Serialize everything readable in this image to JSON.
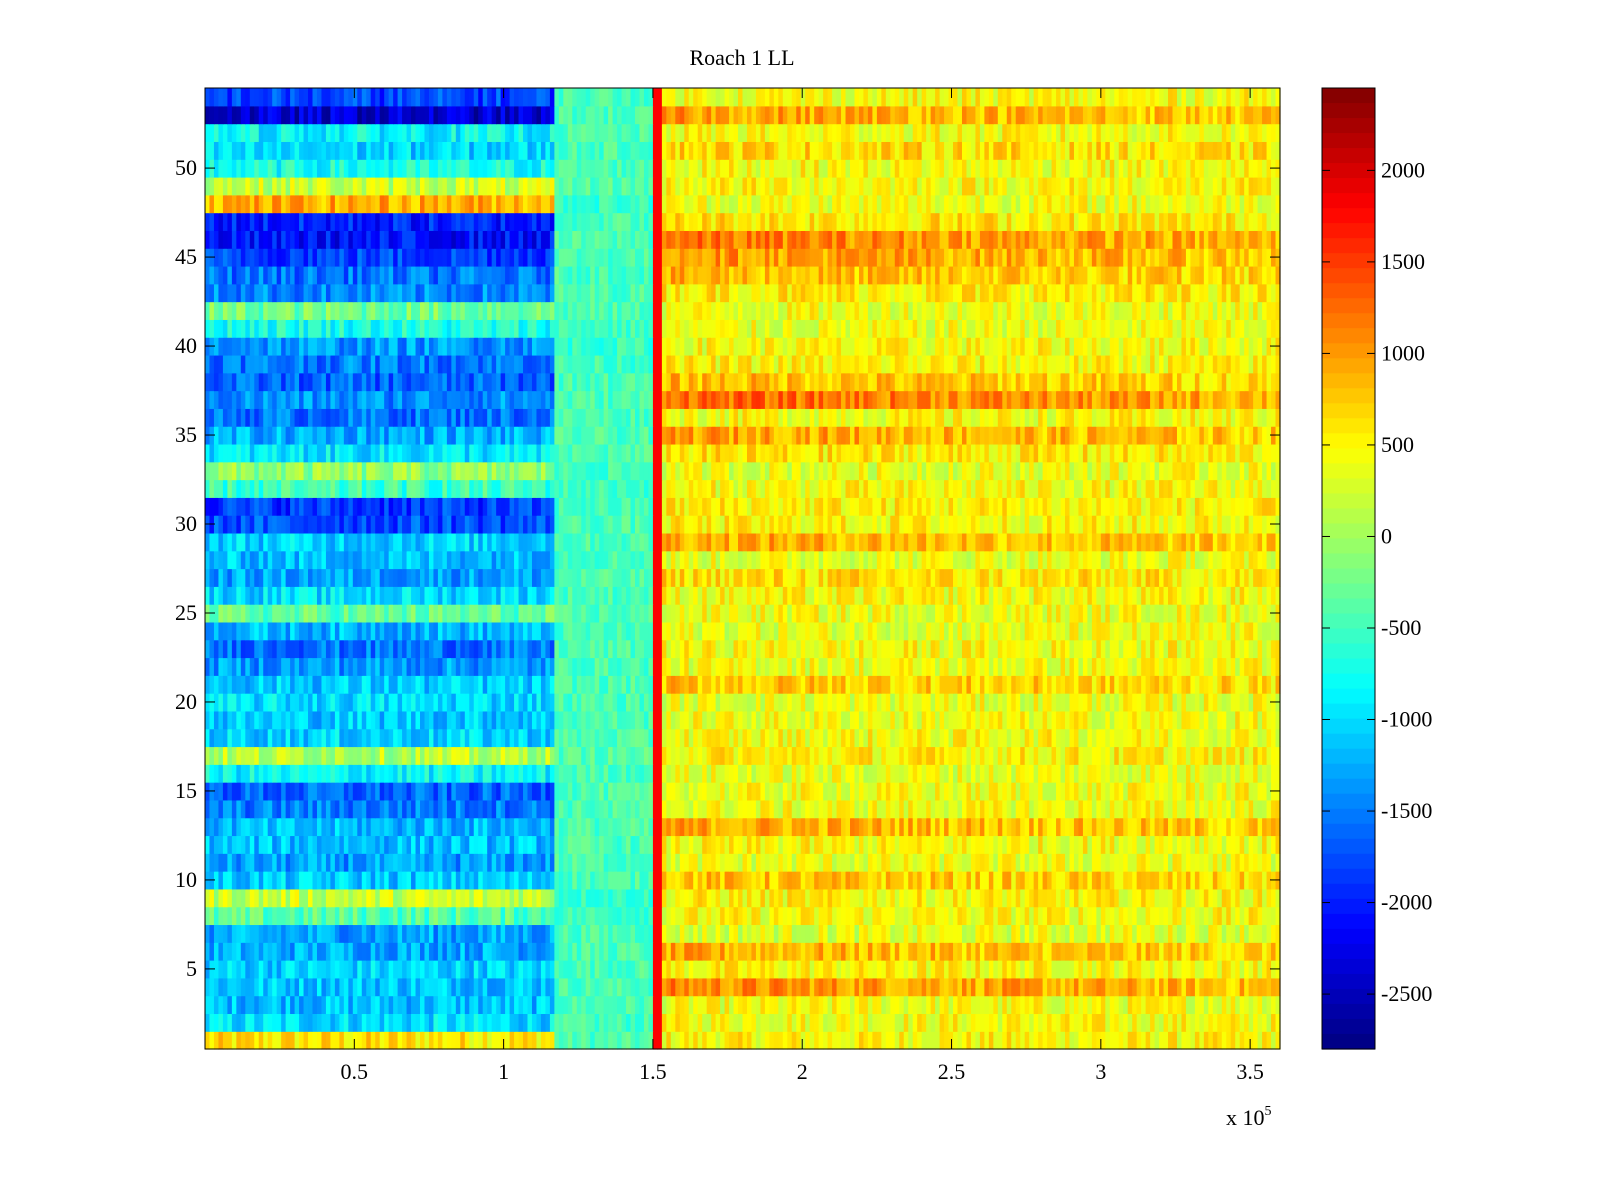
{
  "chart_data": {
    "type": "heatmap",
    "title": "Roach 1 LL",
    "xlabel": "",
    "ylabel": "",
    "x_multiplier_label": {
      "base": "x 10",
      "exponent": "5"
    },
    "xlim": [
      0,
      360000
    ],
    "ylim": [
      0.5,
      54.5
    ],
    "x_ticks": [
      50000,
      100000,
      150000,
      200000,
      250000,
      300000,
      350000
    ],
    "x_tick_labels": [
      "0.5",
      "1",
      "1.5",
      "2",
      "2.5",
      "3",
      "3.5"
    ],
    "y_ticks": [
      5,
      10,
      15,
      20,
      25,
      30,
      35,
      40,
      45,
      50
    ],
    "y_tick_labels": [
      "5",
      "10",
      "15",
      "20",
      "25",
      "30",
      "35",
      "40",
      "45",
      "50"
    ],
    "rows": 54,
    "colormap": "jet",
    "clim": [
      -2800,
      2450
    ],
    "colorbar_ticks": [
      2000,
      1500,
      1000,
      500,
      0,
      -500,
      -1000,
      -1500,
      -2000,
      -2500
    ],
    "colorbar_tick_labels": [
      "2000",
      "1500",
      "1000",
      "500",
      "0",
      "-500",
      "-1000",
      "-1500",
      "-2000",
      "-2500"
    ],
    "phase_boundaries_x": [
      117000,
      152000
    ],
    "phase_mean_values": [
      {
        "x_range": [
          0,
          117000
        ],
        "typical_range": [
          -2500,
          500
        ]
      },
      {
        "x_range": [
          117000,
          152000
        ],
        "typical_range": [
          -900,
          -200
        ]
      },
      {
        "x_range": [
          152000,
          360000
        ],
        "typical_range": [
          0,
          1200
        ]
      }
    ],
    "row_means": [
      [
        600,
        -450,
        500
      ],
      [
        -1000,
        -500,
        450
      ],
      [
        -1150,
        -450,
        400
      ],
      [
        -1100,
        -450,
        1100
      ],
      [
        -1050,
        -450,
        500
      ],
      [
        -1250,
        -450,
        900
      ],
      [
        -1300,
        -450,
        300
      ],
      [
        -400,
        -500,
        450
      ],
      [
        200,
        -550,
        500
      ],
      [
        -1100,
        -450,
        800
      ],
      [
        -1350,
        -450,
        350
      ],
      [
        -1150,
        -450,
        450
      ],
      [
        -1200,
        -450,
        950
      ],
      [
        -1500,
        -450,
        400
      ],
      [
        -1650,
        -450,
        400
      ],
      [
        -850,
        -450,
        350
      ],
      [
        100,
        -400,
        550
      ],
      [
        -1050,
        -450,
        450
      ],
      [
        -1100,
        -450,
        400
      ],
      [
        -1000,
        -450,
        350
      ],
      [
        -1100,
        -450,
        800
      ],
      [
        -1350,
        -450,
        400
      ],
      [
        -1550,
        -450,
        450
      ],
      [
        -1200,
        -500,
        350
      ],
      [
        -350,
        -450,
        400
      ],
      [
        -1000,
        -450,
        450
      ],
      [
        -1300,
        -450,
        650
      ],
      [
        -1150,
        -450,
        350
      ],
      [
        -1050,
        -450,
        950
      ],
      [
        -1750,
        -450,
        500
      ],
      [
        -1850,
        -500,
        550
      ],
      [
        -550,
        -500,
        450
      ],
      [
        -100,
        -500,
        350
      ],
      [
        -950,
        -450,
        600
      ],
      [
        -1250,
        -450,
        1000
      ],
      [
        -1550,
        -450,
        450
      ],
      [
        -1400,
        -450,
        1300
      ],
      [
        -1650,
        -450,
        850
      ],
      [
        -1500,
        -500,
        500
      ],
      [
        -1350,
        -550,
        450
      ],
      [
        -700,
        -500,
        350
      ],
      [
        -250,
        -450,
        400
      ],
      [
        -1450,
        -450,
        600
      ],
      [
        -1550,
        -450,
        850
      ],
      [
        -1800,
        -450,
        1050
      ],
      [
        -2100,
        -450,
        1200
      ],
      [
        -2000,
        -450,
        650
      ],
      [
        900,
        -550,
        400
      ],
      [
        200,
        -400,
        500
      ],
      [
        -750,
        -450,
        450
      ],
      [
        -1050,
        -450,
        700
      ],
      [
        -850,
        -450,
        450
      ],
      [
        -2400,
        -450,
        1000
      ],
      [
        -1800,
        -450,
        450
      ]
    ]
  }
}
